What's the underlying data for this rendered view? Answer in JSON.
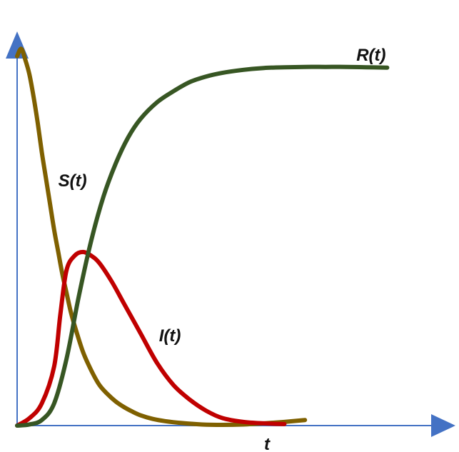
{
  "chart_data": {
    "type": "line",
    "title": "",
    "xlabel": "t",
    "ylabel": "",
    "grid": false,
    "legend": "none",
    "x_range": [
      0,
      10
    ],
    "y_range": [
      0,
      1.04
    ],
    "axis_color": "#4472C4",
    "series": [
      {
        "name": "S(t)",
        "color": "#7F6000",
        "x": [
          0,
          0.1,
          0.2,
          0.3,
          0.4,
          0.5,
          0.6,
          0.7,
          0.8,
          0.9,
          1.0,
          1.1,
          1.2,
          1.3,
          1.4,
          1.6,
          1.8,
          2.0,
          2.2,
          2.4,
          2.6,
          2.8,
          3.0,
          3.3,
          3.6,
          4.0,
          4.5,
          5.0,
          5.5,
          6.0,
          6.5,
          7.0
        ],
        "y": [
          1.0,
          1.02,
          0.99,
          0.95,
          0.89,
          0.82,
          0.74,
          0.67,
          0.6,
          0.53,
          0.47,
          0.41,
          0.36,
          0.31,
          0.27,
          0.2,
          0.15,
          0.11,
          0.085,
          0.065,
          0.05,
          0.038,
          0.028,
          0.018,
          0.012,
          0.007,
          0.003,
          0.002,
          0.003,
          0.006,
          0.01,
          0.015
        ]
      },
      {
        "name": "I(t)",
        "color": "#C00000",
        "x": [
          0,
          0.3,
          0.6,
          0.9,
          1.05,
          1.2,
          1.4,
          1.6,
          1.8,
          2.0,
          2.3,
          2.6,
          3.0,
          3.4,
          3.8,
          4.2,
          4.6,
          5.0,
          5.5,
          6.0,
          6.5
        ],
        "y": [
          0.0,
          0.02,
          0.06,
          0.16,
          0.3,
          0.42,
          0.46,
          0.47,
          0.46,
          0.44,
          0.39,
          0.33,
          0.25,
          0.17,
          0.11,
          0.07,
          0.04,
          0.02,
          0.01,
          0.006,
          0.004
        ]
      },
      {
        "name": "R(t)",
        "color": "#375623",
        "x": [
          0,
          0.3,
          0.6,
          0.9,
          1.2,
          1.5,
          1.8,
          2.1,
          2.4,
          2.7,
          3.0,
          3.4,
          3.8,
          4.2,
          4.6,
          5.0,
          5.5,
          6.0,
          6.5,
          7.0,
          7.5,
          8.0,
          8.5,
          9.0
        ],
        "y": [
          0.0,
          0.003,
          0.015,
          0.06,
          0.18,
          0.35,
          0.5,
          0.62,
          0.71,
          0.78,
          0.83,
          0.875,
          0.905,
          0.93,
          0.945,
          0.955,
          0.963,
          0.968,
          0.97,
          0.971,
          0.971,
          0.971,
          0.97,
          0.969
        ]
      }
    ],
    "labels": [
      {
        "text": "R(t)",
        "x": 8.25,
        "y": 1.0
      },
      {
        "text": "S(t)",
        "x": 1.0,
        "y": 0.66
      },
      {
        "text": "I(t)",
        "x": 3.45,
        "y": 0.24
      }
    ],
    "xlabel_text": "t"
  }
}
